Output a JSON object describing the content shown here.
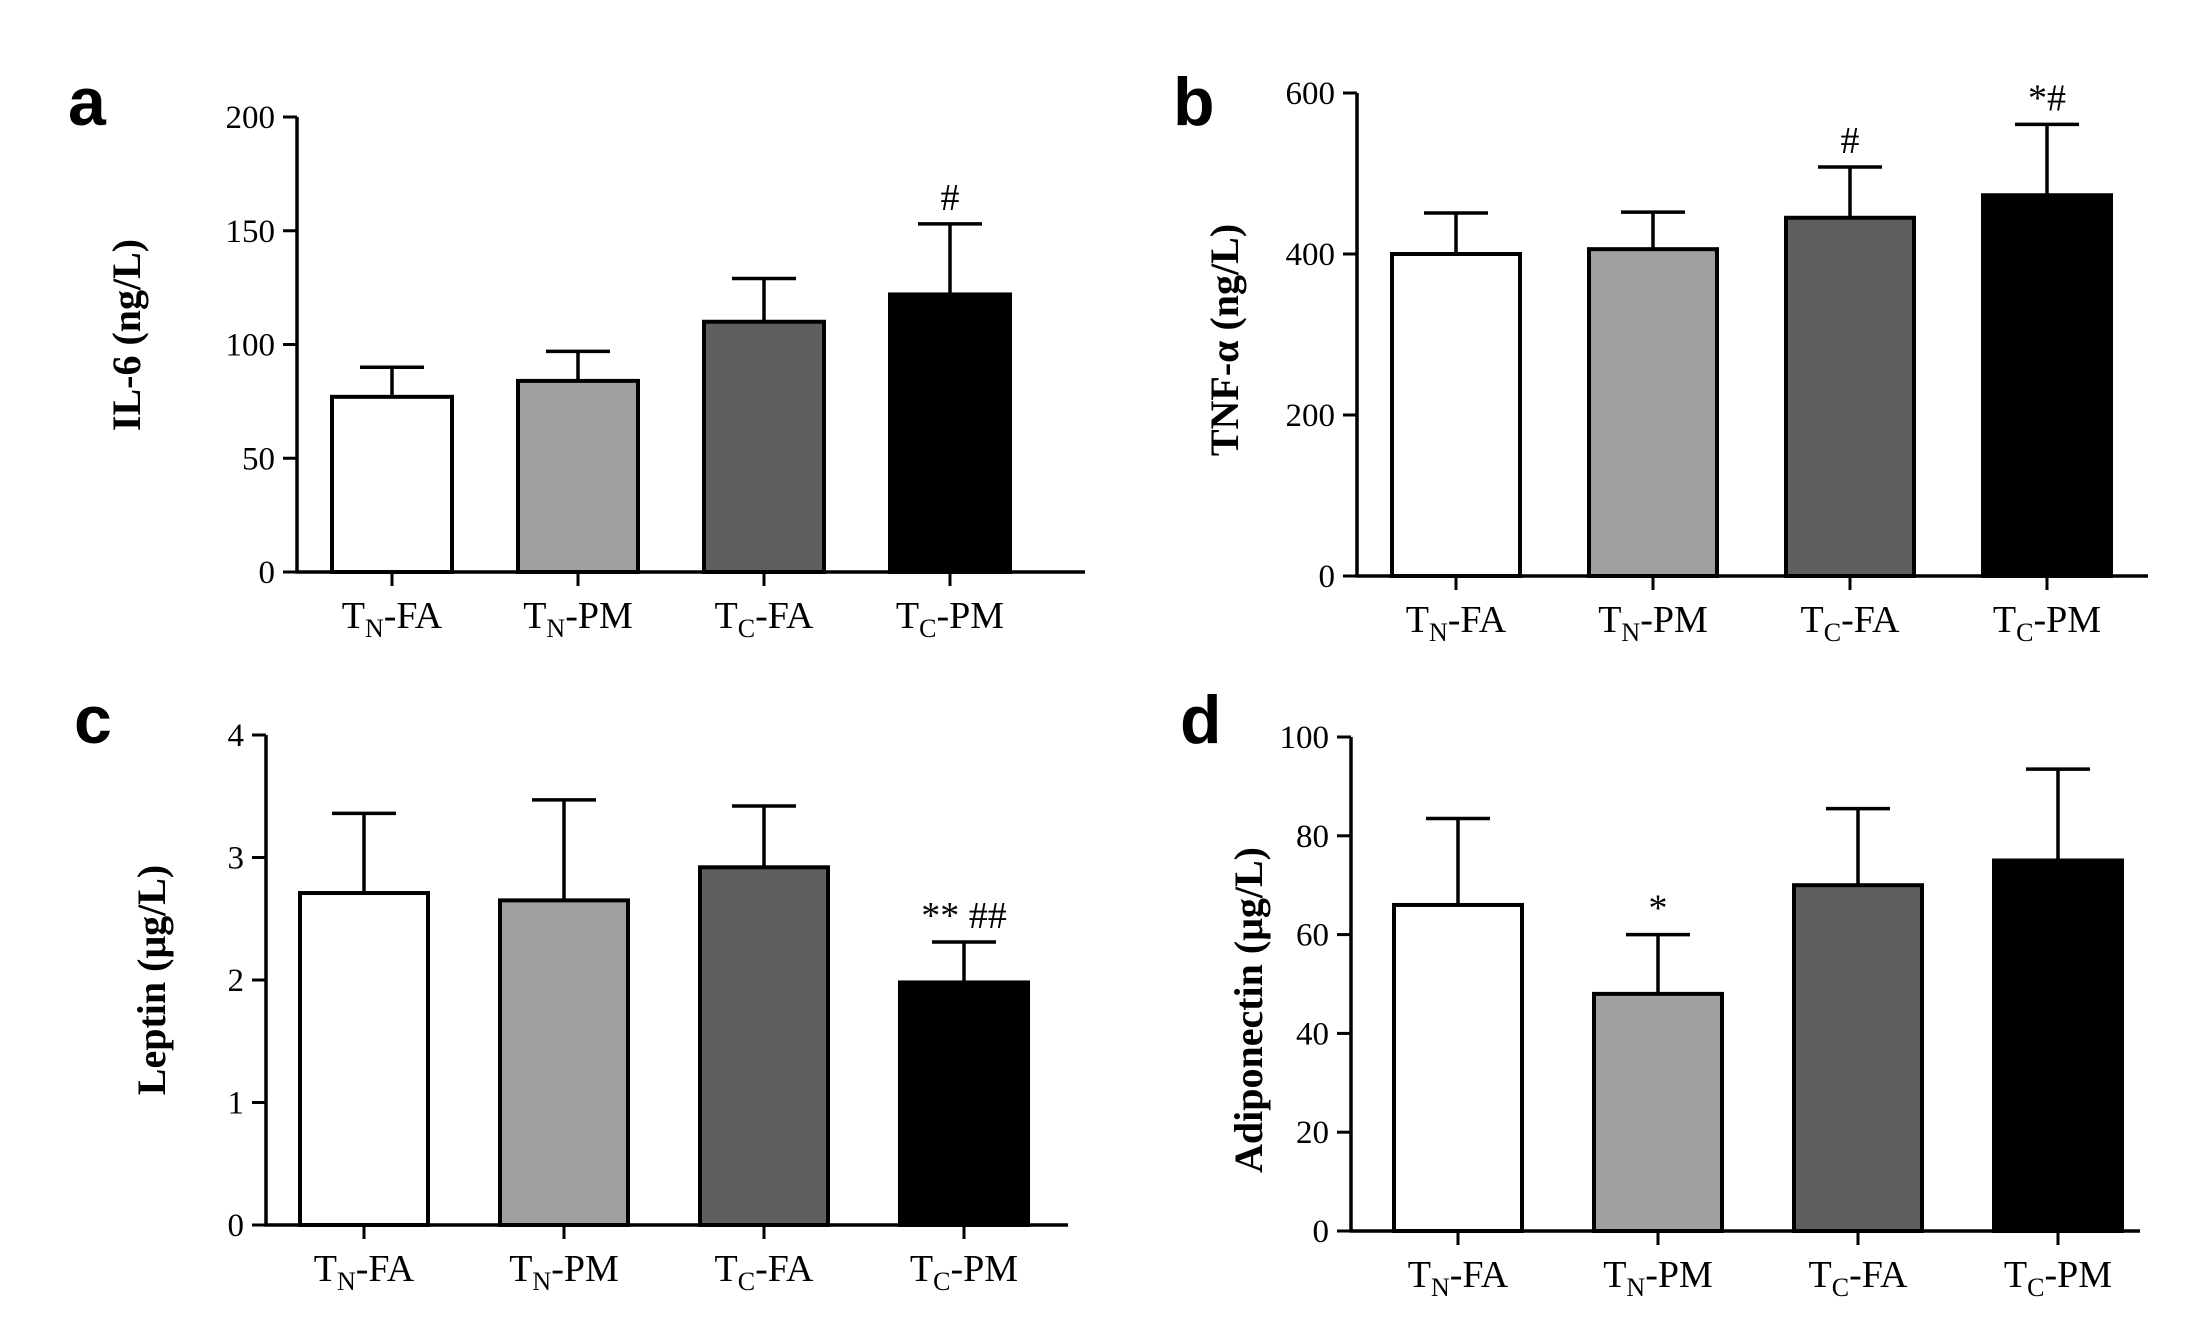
{
  "figure": {
    "chart_data": [
      {
        "panel": "a",
        "type": "bar",
        "categories": [
          {
            "base": "T",
            "sub": "N",
            "rest": "-FA"
          },
          {
            "base": "T",
            "sub": "N",
            "rest": "-PM"
          },
          {
            "base": "T",
            "sub": "C",
            "rest": "-FA"
          },
          {
            "base": "T",
            "sub": "C",
            "rest": "-PM"
          }
        ],
        "values": [
          77,
          84,
          110,
          122
        ],
        "errors": [
          13,
          13,
          19,
          31
        ],
        "annotations": [
          "",
          "",
          "",
          "#"
        ],
        "ylabel": "IL-6 (ng/L)",
        "ylim": [
          0,
          200
        ],
        "yticks": [
          0,
          50,
          100,
          150,
          200
        ],
        "colors": [
          "#ffffff",
          "#a0a0a3",
          "#5f5f5f",
          "#000000"
        ]
      },
      {
        "panel": "b",
        "type": "bar",
        "categories": [
          {
            "base": "T",
            "sub": "N",
            "rest": "-FA"
          },
          {
            "base": "T",
            "sub": "N",
            "rest": "-PM"
          },
          {
            "base": "T",
            "sub": "C",
            "rest": "-FA"
          },
          {
            "base": "T",
            "sub": "C",
            "rest": "-PM"
          }
        ],
        "values": [
          400,
          406,
          445,
          473
        ],
        "errors": [
          51,
          46,
          63,
          88
        ],
        "annotations": [
          "",
          "",
          "#",
          "*#"
        ],
        "ylabel": "TNF-α (ng/L)",
        "ylim": [
          0,
          600
        ],
        "yticks": [
          0,
          200,
          400,
          600
        ],
        "colors": [
          "#ffffff",
          "#a0a0a3",
          "#5f5f5f",
          "#000000"
        ]
      },
      {
        "panel": "c",
        "type": "bar",
        "categories": [
          {
            "base": "T",
            "sub": "N",
            "rest": "-FA"
          },
          {
            "base": "T",
            "sub": "N",
            "rest": "-PM"
          },
          {
            "base": "T",
            "sub": "C",
            "rest": "-FA"
          },
          {
            "base": "T",
            "sub": "C",
            "rest": "-PM"
          }
        ],
        "values": [
          2.71,
          2.65,
          2.92,
          1.98
        ],
        "errors": [
          0.65,
          0.82,
          0.5,
          0.33
        ],
        "annotations": [
          "",
          "",
          "",
          "** ##"
        ],
        "ylabel": "Leptin (μg/L)",
        "ylim": [
          0,
          4
        ],
        "yticks": [
          0,
          1,
          2,
          3,
          4
        ],
        "colors": [
          "#ffffff",
          "#a0a0a3",
          "#5f5f5f",
          "#000000"
        ]
      },
      {
        "panel": "d",
        "type": "bar",
        "categories": [
          {
            "base": "T",
            "sub": "N",
            "rest": "-FA"
          },
          {
            "base": "T",
            "sub": "N",
            "rest": "-PM"
          },
          {
            "base": "T",
            "sub": "C",
            "rest": "-FA"
          },
          {
            "base": "T",
            "sub": "C",
            "rest": "-PM"
          }
        ],
        "values": [
          66,
          48,
          70,
          75
        ],
        "errors": [
          17.5,
          12,
          15.5,
          18.5
        ],
        "annotations": [
          "",
          "*",
          "",
          ""
        ],
        "ylabel": "Adiponectin (μg/L)",
        "ylim": [
          0,
          100
        ],
        "yticks": [
          0,
          20,
          40,
          60,
          80,
          100
        ],
        "colors": [
          "#ffffff",
          "#a0a0a3",
          "#5f5f5f",
          "#000000"
        ]
      }
    ]
  }
}
